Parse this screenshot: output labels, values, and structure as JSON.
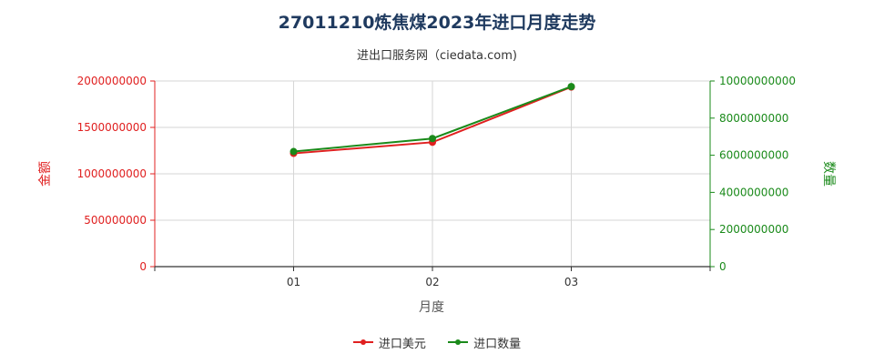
{
  "title": "27011210炼焦煤2023年进口月度走势",
  "subtitle": "进出口服务网（ciedata.com)",
  "chart_data": {
    "type": "line",
    "categories": [
      "01",
      "02",
      "03"
    ],
    "xlabel": "月度",
    "y_left_label": "金额",
    "y_right_label": "数量",
    "y_left_lim": [
      0,
      2000000000
    ],
    "y_right_lim": [
      0,
      10000000000
    ],
    "y_left_ticks": [
      "0",
      "500000000",
      "1000000000",
      "1500000000",
      "2000000000"
    ],
    "y_right_ticks": [
      "0",
      "2000000000",
      "4000000000",
      "6000000000",
      "8000000000",
      "10000000000"
    ],
    "grid": true,
    "legend_position": "bottom",
    "series": [
      {
        "name": "进口美元",
        "axis": "left",
        "color": "#e02020",
        "values": [
          1220000000,
          1340000000,
          1935000000
        ]
      },
      {
        "name": "进口数量",
        "axis": "right",
        "color": "#1a8a1a",
        "values": [
          6200000000,
          6900000000,
          9700000000
        ]
      }
    ]
  }
}
